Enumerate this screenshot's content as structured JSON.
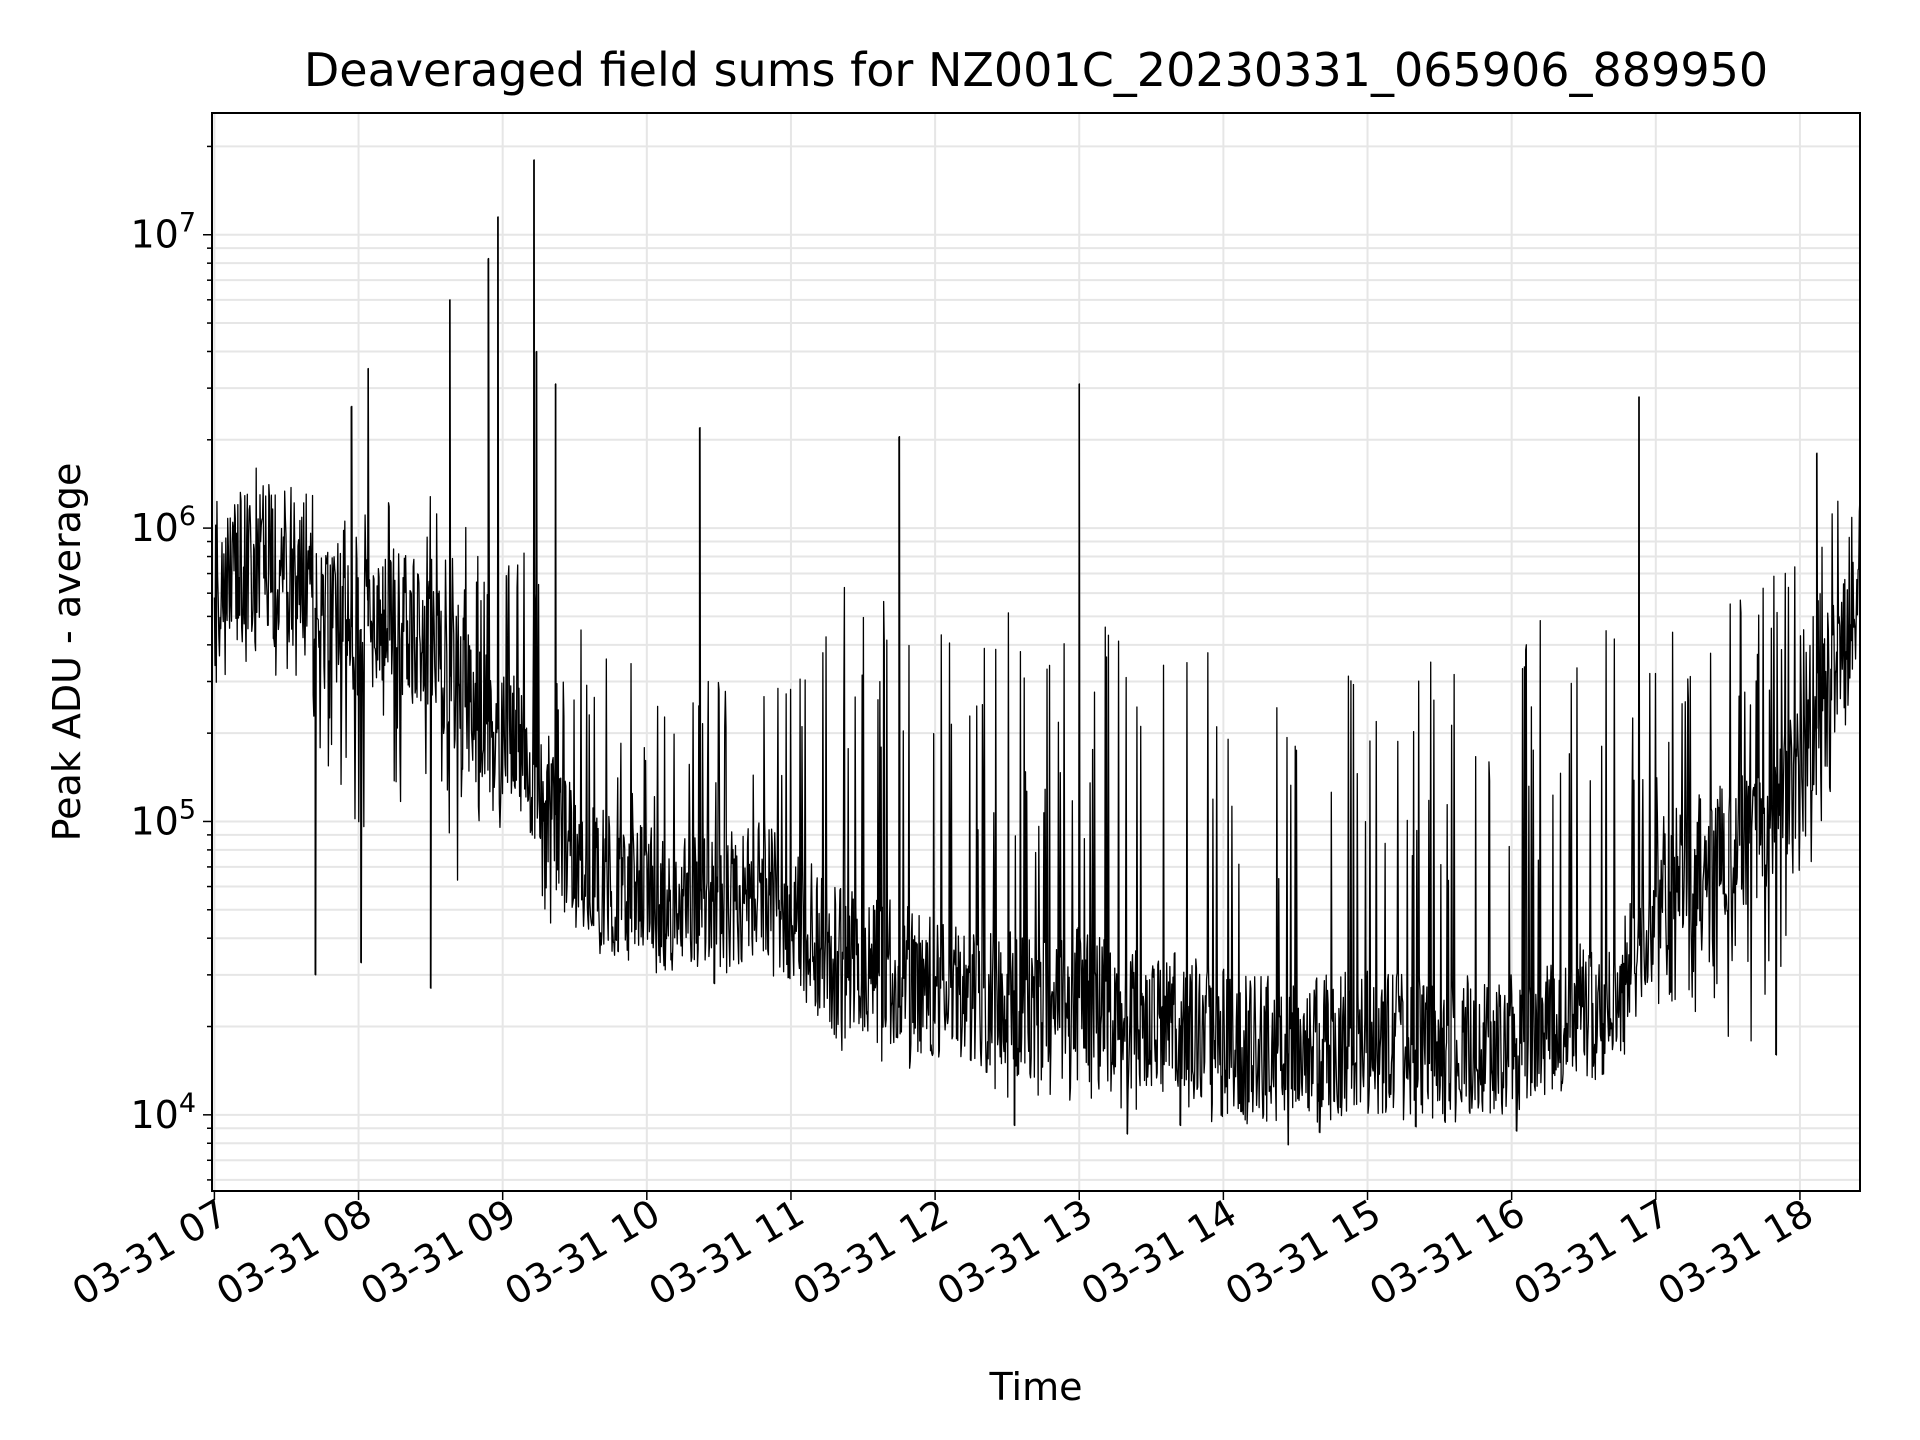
{
  "chart_data": {
    "type": "line",
    "title": "Deaveraged field sums for NZ001C_20230331_065906_889950",
    "xlabel": "Time",
    "ylabel": "Peak ADU - average",
    "yscale": "log",
    "ylim": [
      5500,
      26000000
    ],
    "xlim": [
      "2023-03-31 06:59",
      "2023-03-31 18:25"
    ],
    "x_tick_labels": [
      "03-31 07",
      "03-31 08",
      "03-31 09",
      "03-31 10",
      "03-31 11",
      "03-31 12",
      "03-31 13",
      "03-31 14",
      "03-31 15",
      "03-31 16",
      "03-31 17",
      "03-31 18"
    ],
    "y_ticks": [
      {
        "base": "10",
        "exp": "4",
        "value": 10000
      },
      {
        "base": "10",
        "exp": "5",
        "value": 100000
      },
      {
        "base": "10",
        "exp": "6",
        "value": 1000000
      },
      {
        "base": "10",
        "exp": "7",
        "value": 10000000
      }
    ],
    "grid": true,
    "line_color": "#000000",
    "series": [
      {
        "x": [
          "2023-03-31 07:00",
          "2023-03-31 07:15",
          "2023-03-31 07:30",
          "2023-03-31 07:45",
          "2023-03-31 08:00",
          "2023-03-31 08:15",
          "2023-03-31 08:30",
          "2023-03-31 08:45",
          "2023-03-31 09:00",
          "2023-03-31 09:15",
          "2023-03-31 09:30",
          "2023-03-31 09:45",
          "2023-03-31 10:00",
          "2023-03-31 10:15",
          "2023-03-31 10:30",
          "2023-03-31 10:45",
          "2023-03-31 11:00",
          "2023-03-31 11:15",
          "2023-03-31 11:30",
          "2023-03-31 11:45",
          "2023-03-31 12:00",
          "2023-03-31 12:15",
          "2023-03-31 12:30",
          "2023-03-31 12:45",
          "2023-03-31 13:00",
          "2023-03-31 13:15",
          "2023-03-31 13:30",
          "2023-03-31 13:45",
          "2023-03-31 14:00",
          "2023-03-31 14:15",
          "2023-03-31 14:30",
          "2023-03-31 14:45",
          "2023-03-31 15:00",
          "2023-03-31 15:15",
          "2023-03-31 15:30",
          "2023-03-31 15:45",
          "2023-03-31 16:00",
          "2023-03-31 16:15",
          "2023-03-31 16:30",
          "2023-03-31 16:45",
          "2023-03-31 17:00",
          "2023-03-31 17:15",
          "2023-03-31 17:30",
          "2023-03-31 17:45",
          "2023-03-31 18:00",
          "2023-03-31 18:15",
          "2023-03-31 18:25"
        ],
        "y": [
          600000,
          800000,
          700000,
          500000,
          450000,
          500000,
          400000,
          250000,
          200000,
          150000,
          70000,
          60000,
          55000,
          50000,
          50000,
          60000,
          50000,
          35000,
          35000,
          30000,
          28000,
          25000,
          24000,
          22000,
          25000,
          22000,
          21000,
          20000,
          18000,
          17000,
          16000,
          17000,
          18000,
          17000,
          16000,
          17000,
          18000,
          20000,
          22000,
          25000,
          60000,
          70000,
          80000,
          90000,
          150000,
          300000,
          600000
        ],
        "low": [
          250000,
          350000,
          300000,
          150000,
          80000,
          90000,
          70000,
          60000,
          55000,
          45000,
          42000,
          38000,
          36000,
          36000,
          38000,
          35000,
          25000,
          16000,
          15000,
          14000,
          13000,
          12000,
          11000,
          10000,
          11000,
          10000,
          10000,
          10000,
          9000,
          9000,
          9500,
          10000,
          10500,
          10000,
          10000,
          10500,
          11000,
          12000,
          13000,
          13500,
          20000,
          18000,
          17000,
          17000,
          50000,
          150000,
          300000
        ],
        "high": [
          1500000,
          1700000,
          1500000,
          1300000,
          1300000,
          1400000,
          1400000,
          1200000,
          1100000,
          900000,
          500000,
          400000,
          400000,
          350000,
          300000,
          250000,
          700000,
          800000,
          800000,
          700000,
          600000,
          600000,
          550000,
          500000,
          550000,
          500000,
          450000,
          400000,
          400000,
          350000,
          350000,
          400000,
          450000,
          400000,
          400000,
          450000,
          500000,
          550000,
          550000,
          550000,
          450000,
          550000,
          600000,
          650000,
          900000,
          1300000,
          1500000
        ]
      }
    ],
    "spikes": [
      {
        "x": "2023-03-31 07:57",
        "y": 2600000
      },
      {
        "x": "2023-03-31 08:04",
        "y": 3500000
      },
      {
        "x": "2023-03-31 08:38",
        "y": 6000000
      },
      {
        "x": "2023-03-31 08:54",
        "y": 8300000
      },
      {
        "x": "2023-03-31 08:58",
        "y": 11500000
      },
      {
        "x": "2023-03-31 09:13",
        "y": 18000000
      },
      {
        "x": "2023-03-31 09:14",
        "y": 4000000
      },
      {
        "x": "2023-03-31 09:22",
        "y": 3100000
      },
      {
        "x": "2023-03-31 10:22",
        "y": 2200000
      },
      {
        "x": "2023-03-31 11:45",
        "y": 2050000
      },
      {
        "x": "2023-03-31 13:00",
        "y": 3100000
      },
      {
        "x": "2023-03-31 16:53",
        "y": 2800000
      },
      {
        "x": "2023-03-31 18:07",
        "y": 1800000
      }
    ],
    "dips": [
      {
        "x": "2023-03-31 07:42",
        "y": 30000
      },
      {
        "x": "2023-03-31 08:01",
        "y": 33000
      },
      {
        "x": "2023-03-31 08:30",
        "y": 27000
      },
      {
        "x": "2023-03-31 09:48",
        "y": 36000
      },
      {
        "x": "2023-03-31 10:28",
        "y": 28000
      },
      {
        "x": "2023-03-31 12:33",
        "y": 9200
      },
      {
        "x": "2023-03-31 13:20",
        "y": 8600
      },
      {
        "x": "2023-03-31 13:42",
        "y": 9200
      },
      {
        "x": "2023-03-31 14:27",
        "y": 7900
      },
      {
        "x": "2023-03-31 14:40",
        "y": 8700
      },
      {
        "x": "2023-03-31 15:20",
        "y": 9100
      },
      {
        "x": "2023-03-31 16:02",
        "y": 8800
      },
      {
        "x": "2023-03-31 17:50",
        "y": 16000
      }
    ]
  }
}
